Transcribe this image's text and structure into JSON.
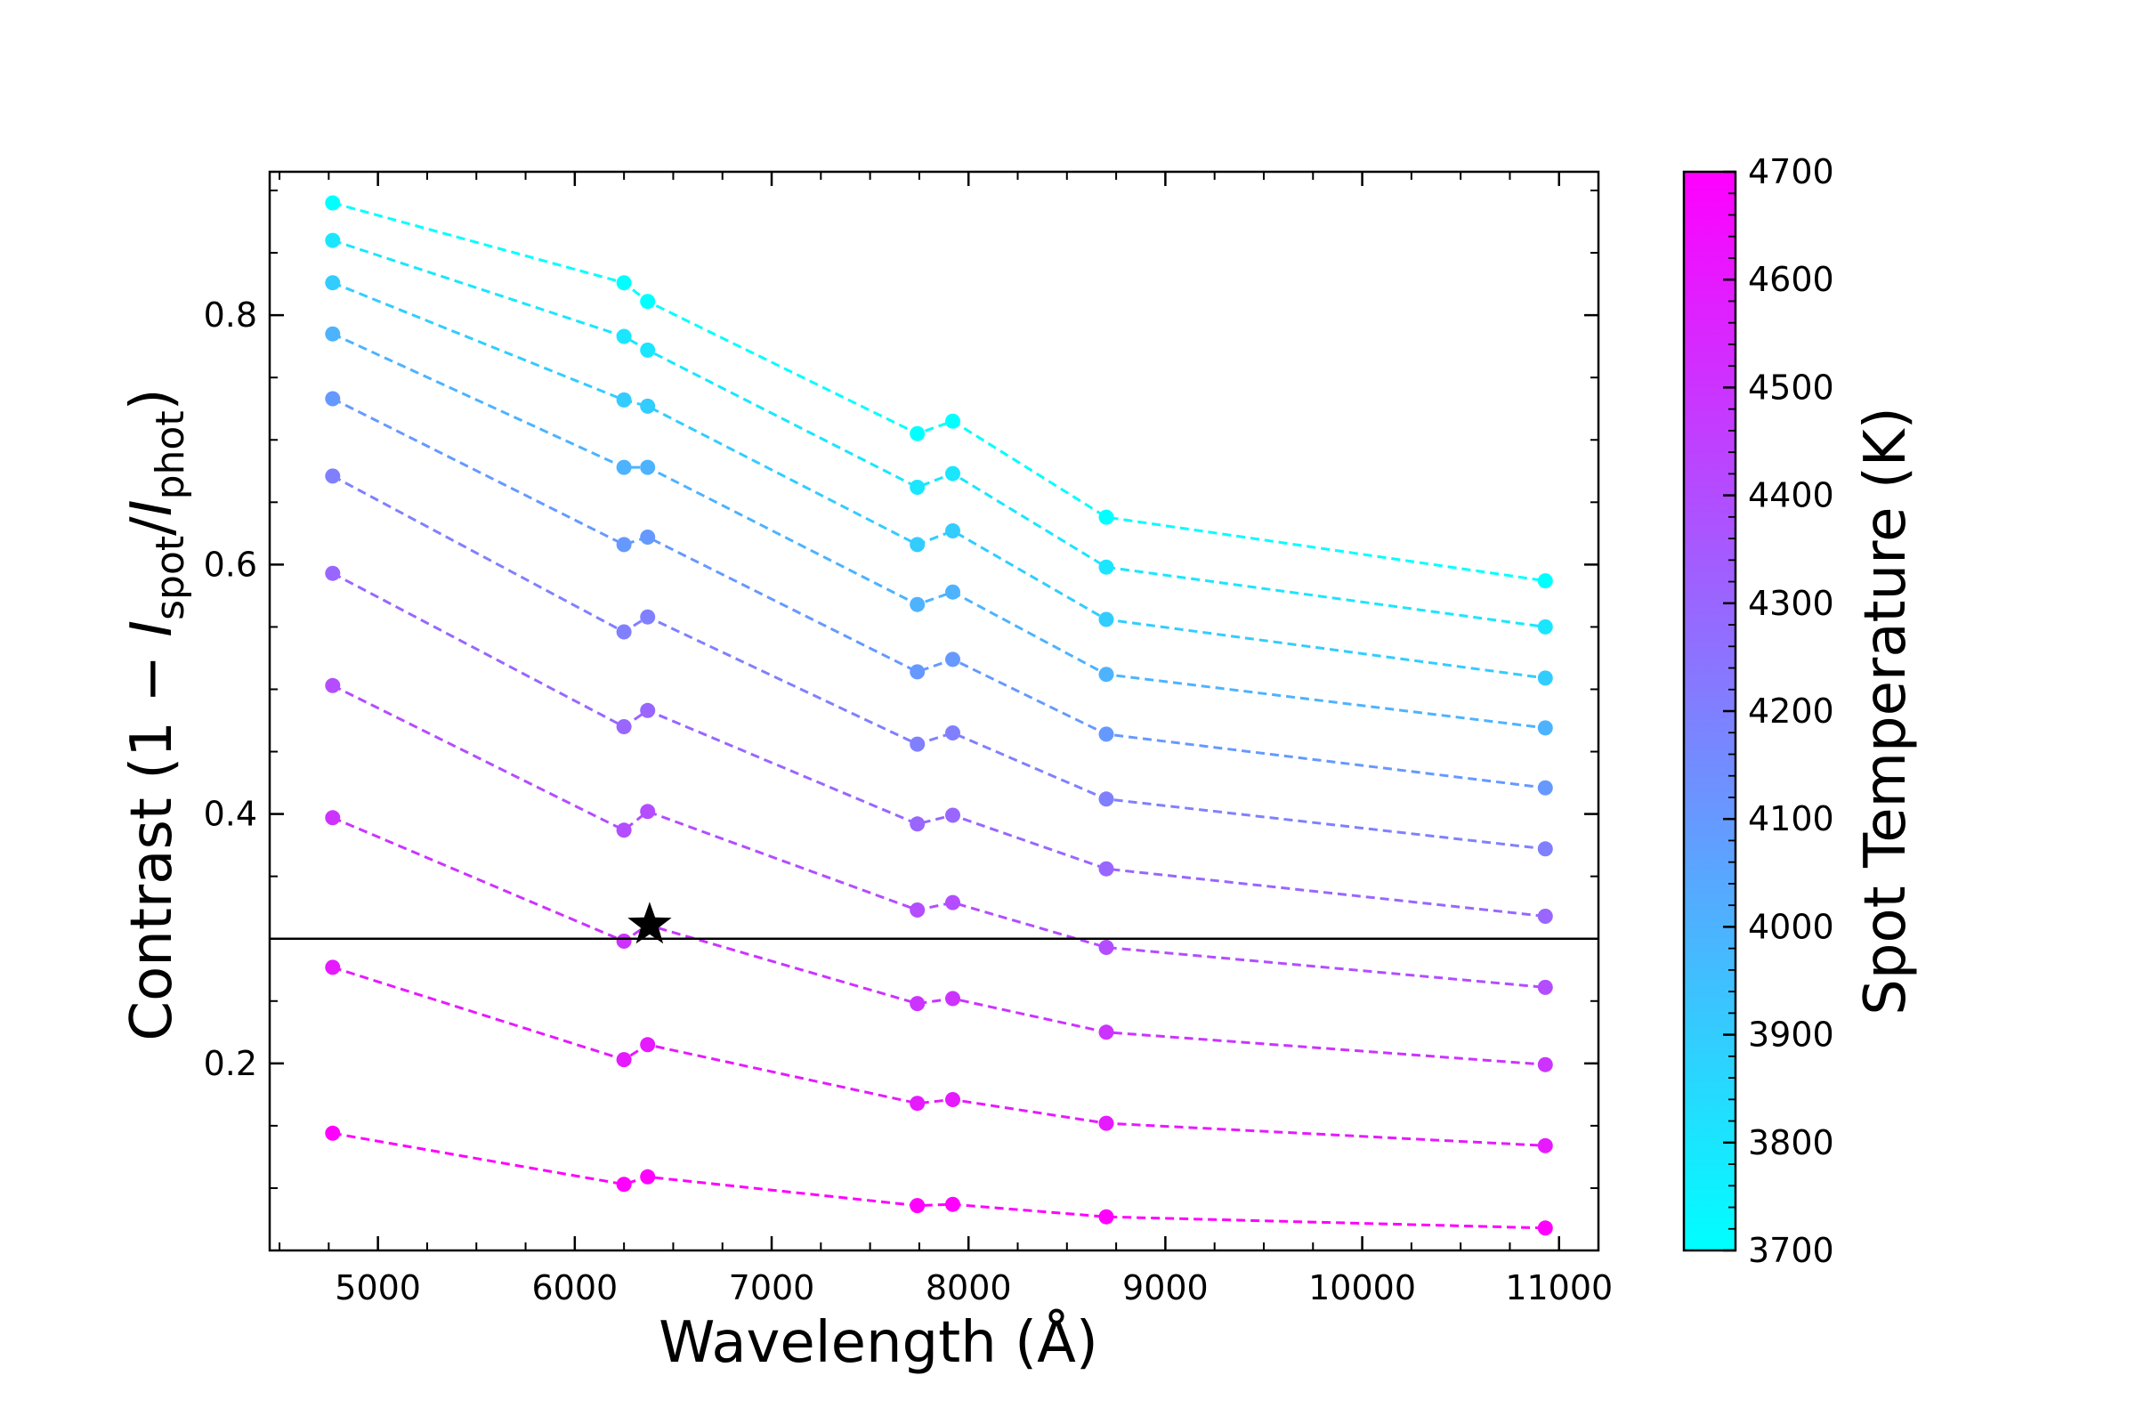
{
  "chart_data": {
    "type": "line",
    "x": [
      4770,
      6250,
      6370,
      7740,
      7920,
      8700,
      10930
    ],
    "xlim": [
      4450,
      11200
    ],
    "ylim": [
      0.05,
      0.915
    ],
    "x_ticks": [
      5000,
      6000,
      7000,
      8000,
      9000,
      10000,
      11000
    ],
    "y_ticks": [
      0.2,
      0.4,
      0.6,
      0.8
    ],
    "xlabel": "Wavelength (Å)",
    "ylabel": {
      "prefix": "Contrast (1 − ",
      "i1": "I",
      "sub1": "spot",
      "slash": "/",
      "i2": "I",
      "sub2": "phot",
      "suffix": ")"
    },
    "series": [
      {
        "temperature": 3700,
        "values": [
          0.89,
          0.826,
          0.811,
          0.705,
          0.715,
          0.638,
          0.587
        ]
      },
      {
        "temperature": 3800,
        "values": [
          0.86,
          0.783,
          0.772,
          0.662,
          0.673,
          0.598,
          0.55
        ]
      },
      {
        "temperature": 3900,
        "values": [
          0.826,
          0.732,
          0.727,
          0.616,
          0.627,
          0.556,
          0.509
        ]
      },
      {
        "temperature": 4000,
        "values": [
          0.785,
          0.678,
          0.678,
          0.568,
          0.578,
          0.512,
          0.469
        ]
      },
      {
        "temperature": 4100,
        "values": [
          0.733,
          0.616,
          0.622,
          0.514,
          0.524,
          0.464,
          0.421
        ]
      },
      {
        "temperature": 4200,
        "values": [
          0.671,
          0.546,
          0.558,
          0.456,
          0.465,
          0.412,
          0.372
        ]
      },
      {
        "temperature": 4300,
        "values": [
          0.593,
          0.47,
          0.483,
          0.392,
          0.399,
          0.356,
          0.318
        ]
      },
      {
        "temperature": 4400,
        "values": [
          0.503,
          0.387,
          0.402,
          0.323,
          0.329,
          0.293,
          0.261
        ]
      },
      {
        "temperature": 4500,
        "values": [
          0.397,
          0.298,
          0.311,
          0.248,
          0.252,
          0.225,
          0.199
        ]
      },
      {
        "temperature": 4600,
        "values": [
          0.277,
          0.203,
          0.215,
          0.168,
          0.171,
          0.152,
          0.134
        ]
      },
      {
        "temperature": 4700,
        "values": [
          0.144,
          0.103,
          0.109,
          0.086,
          0.087,
          0.077,
          0.068
        ]
      }
    ],
    "hline": {
      "y": 0.3,
      "color": "#000000"
    },
    "star_marker": {
      "x": 6380,
      "y": 0.311,
      "color": "#000000"
    },
    "colormap": {
      "name": "cool",
      "low_color": "#00ffff",
      "high_color": "#ff00ff"
    },
    "colorbar": {
      "label": "Spot Temperature (K)",
      "min": 3700,
      "max": 4700,
      "ticks": [
        3700,
        3800,
        3900,
        4000,
        4100,
        4200,
        4300,
        4400,
        4500,
        4600,
        4700
      ]
    },
    "grid": false,
    "legend": "none"
  }
}
